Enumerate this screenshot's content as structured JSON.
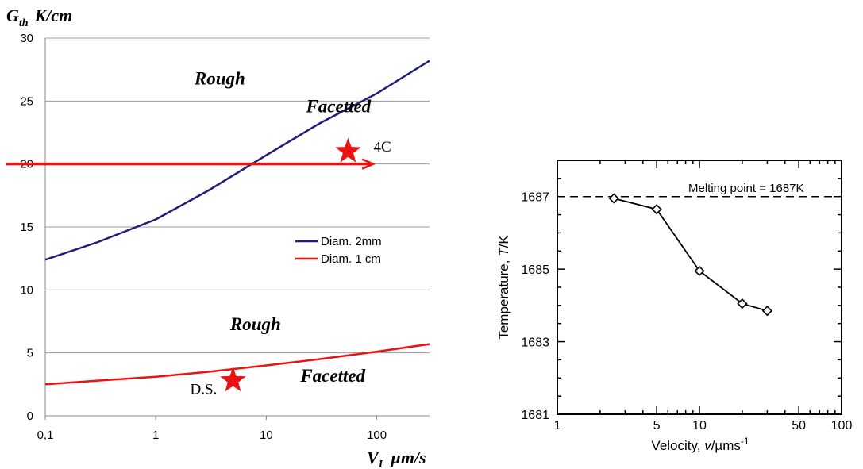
{
  "chart_data": [
    {
      "type": "line",
      "title": "",
      "ylabel": "G",
      "ylabel_sub": "th",
      "ylabel_unit": "K/cm",
      "xlabel": "V",
      "xlabel_sub": "I",
      "xlabel_unit": "µm/s",
      "xscale": "log",
      "xlim": [
        0.1,
        300
      ],
      "ylim": [
        0,
        30
      ],
      "xticks": [
        {
          "value": 0.1,
          "label": "0,1"
        },
        {
          "value": 1,
          "label": "1"
        },
        {
          "value": 10,
          "label": "10"
        },
        {
          "value": 100,
          "label": "100"
        }
      ],
      "yticks": [
        {
          "value": 0,
          "label": "0"
        },
        {
          "value": 5,
          "label": "5"
        },
        {
          "value": 10,
          "label": "10"
        },
        {
          "value": 15,
          "label": "15"
        },
        {
          "value": 20,
          "label": "20"
        },
        {
          "value": 25,
          "label": "25"
        },
        {
          "value": 30,
          "label": "30"
        }
      ],
      "grid": true,
      "legend_position": "center-right",
      "series": [
        {
          "name": "Diam. 2mm",
          "color": "#1f1f7a",
          "x": [
            0.1,
            0.3,
            1,
            3,
            10,
            30,
            100,
            300
          ],
          "y": [
            12.4,
            13.8,
            15.6,
            17.9,
            20.7,
            23.2,
            25.6,
            28.2
          ]
        },
        {
          "name": "Diam. 1 cm",
          "color": "#ee1111",
          "x": [
            0.1,
            0.3,
            1,
            3,
            10,
            30,
            100,
            300
          ],
          "y": [
            2.5,
            2.8,
            3.1,
            3.5,
            4.0,
            4.5,
            5.1,
            5.7
          ]
        }
      ],
      "arrow": {
        "y": 20,
        "x_start": 0.1,
        "x_end": 90,
        "color": "#ee1111"
      },
      "annotations": [
        {
          "text": "Rough",
          "x": 3.8,
          "y": 26.3
        },
        {
          "text": "Facetted",
          "x": 45,
          "y": 24.1
        },
        {
          "text": "Rough",
          "x": 8,
          "y": 6.8
        },
        {
          "text": "Facetted",
          "x": 40,
          "y": 2.7
        }
      ],
      "markers": [
        {
          "label": "4C",
          "x": 55,
          "y": 21.0,
          "symbol": "star",
          "color": "#ee1111"
        },
        {
          "label": "D.S.",
          "x": 5,
          "y": 2.8,
          "symbol": "star",
          "color": "#ee1111"
        }
      ]
    },
    {
      "type": "line",
      "title": "",
      "xlabel": "Velocity, v/µms-1",
      "xlabel_parts": {
        "pre": "Velocity, ",
        "var": "v",
        "mid": "/µms",
        "sup": "-1"
      },
      "ylabel_parts": {
        "pre": "Temperature, ",
        "var": "T",
        "post": "/K"
      },
      "xscale": "log",
      "xlim": [
        1,
        100
      ],
      "ylim": [
        1681,
        1688
      ],
      "xticks": [
        {
          "value": 1,
          "label": "1"
        },
        {
          "value": 5,
          "label": "5"
        },
        {
          "value": 10,
          "label": "10"
        },
        {
          "value": 50,
          "label": "50"
        },
        {
          "value": 100,
          "label": "100"
        }
      ],
      "yticks": [
        {
          "value": 1681,
          "label": "1681"
        },
        {
          "value": 1683,
          "label": "1683"
        },
        {
          "value": 1685,
          "label": "1685"
        },
        {
          "value": 1687,
          "label": "1687"
        }
      ],
      "grid": false,
      "reference_line": {
        "y": 1687,
        "label": "Melting point = 1687K",
        "style": "dashed"
      },
      "series": [
        {
          "name": "",
          "marker": "diamond",
          "x": [
            2.5,
            5,
            10,
            20,
            30
          ],
          "y": [
            1686.95,
            1686.65,
            1684.95,
            1684.05,
            1683.85
          ]
        }
      ]
    }
  ]
}
